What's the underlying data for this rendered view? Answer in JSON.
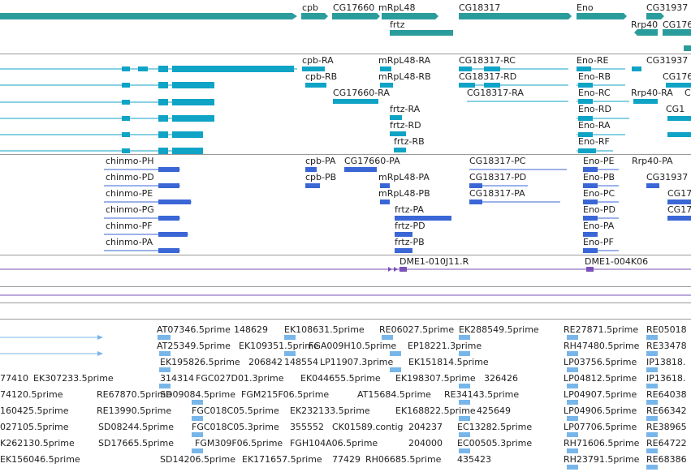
{
  "colors": {
    "gene": "#2a9c9c",
    "mrna": "#0fa3c6",
    "cds": "#3a66d6",
    "probe": "#7a52b8",
    "est": "#78b6ea",
    "divider": "#9a9a9a",
    "label": "#222222"
  },
  "tracks": {
    "genes": {
      "labels": [
        {
          "t": "cpb"
        },
        {
          "t": "CG17660"
        },
        {
          "t": "mRpL48"
        },
        {
          "t": "CG18317"
        },
        {
          "t": "Eno"
        },
        {
          "t": "CG31937"
        },
        {
          "t": "frtz"
        },
        {
          "t": "Rrp40"
        },
        {
          "t": "CG176"
        }
      ]
    },
    "transcripts": {
      "labels": [
        {
          "t": "cpb-RA"
        },
        {
          "t": "mRpL48-RA"
        },
        {
          "t": "CG18317-RC"
        },
        {
          "t": "Eno-RE"
        },
        {
          "t": "CG31937"
        },
        {
          "t": "cpb-RB"
        },
        {
          "t": "mRpL48-RB"
        },
        {
          "t": "CG18317-RD"
        },
        {
          "t": "Eno-RB"
        },
        {
          "t": "CG176"
        },
        {
          "t": "CG17660-RA"
        },
        {
          "t": "CG18317-RA"
        },
        {
          "t": "Eno-RC"
        },
        {
          "t": "Rrp40-RA"
        },
        {
          "t": "C"
        },
        {
          "t": "frtz-RA"
        },
        {
          "t": "Eno-RD"
        },
        {
          "t": "CG1"
        },
        {
          "t": "frtz-RD"
        },
        {
          "t": "Eno-RA"
        },
        {
          "t": "frtz-RB"
        },
        {
          "t": "Eno-RF"
        }
      ]
    },
    "proteins": {
      "labels": [
        {
          "t": "chinmo-PH"
        },
        {
          "t": "cpb-PA"
        },
        {
          "t": "CG17660-PA"
        },
        {
          "t": "CG18317-PC"
        },
        {
          "t": "Eno-PE"
        },
        {
          "t": "Rrp40-PA"
        },
        {
          "t": "chinmo-PD"
        },
        {
          "t": "cpb-PB"
        },
        {
          "t": "mRpL48-PA"
        },
        {
          "t": "CG18317-PD"
        },
        {
          "t": "Eno-PB"
        },
        {
          "t": "CG31937"
        },
        {
          "t": "chinmo-PE"
        },
        {
          "t": "mRpL48-PB"
        },
        {
          "t": "CG18317-PA"
        },
        {
          "t": "Eno-PC"
        },
        {
          "t": "CG17"
        },
        {
          "t": "chinmo-PG"
        },
        {
          "t": "frtz-PA"
        },
        {
          "t": "Eno-PD"
        },
        {
          "t": "CG17"
        },
        {
          "t": "chinmo-PF"
        },
        {
          "t": "frtz-PD"
        },
        {
          "t": "Eno-PA"
        },
        {
          "t": "chinmo-PA"
        },
        {
          "t": "frtz-PB"
        },
        {
          "t": "Eno-PF"
        }
      ]
    },
    "probes": {
      "labels": [
        {
          "t": "DME1-010J11.R"
        },
        {
          "t": "DME1-004K06"
        }
      ]
    },
    "ests": {
      "labels": [
        {
          "t": "AT07346.5prime"
        },
        {
          "t": "148629"
        },
        {
          "t": "EK108631.5prime"
        },
        {
          "t": "RE06027.5prime"
        },
        {
          "t": "EK288549.5prime"
        },
        {
          "t": "RE27871.5prime"
        },
        {
          "t": "RE05018"
        },
        {
          "t": "AT25349.5prime"
        },
        {
          "t": "EK109351.5prime"
        },
        {
          "t": "FGA009H10.5prime"
        },
        {
          "t": "EP18221.3prime"
        },
        {
          "t": "RH47480.5prime"
        },
        {
          "t": "RE33478"
        },
        {
          "t": "EK195826.5prime"
        },
        {
          "t": "206842"
        },
        {
          "t": "148554"
        },
        {
          "t": "LP11907.3prime"
        },
        {
          "t": "EK151814.5prime"
        },
        {
          "t": "LP03756.5prime"
        },
        {
          "t": "IP13818."
        },
        {
          "t": "77410"
        },
        {
          "t": "EK307233.5prime"
        },
        {
          "t": "314314"
        },
        {
          "t": "FGC027D01.3prime"
        },
        {
          "t": "EK044655.5prime"
        },
        {
          "t": "EK198307.5prime"
        },
        {
          "t": "326426"
        },
        {
          "t": "LP04812.5prime"
        },
        {
          "t": "IP13618."
        },
        {
          "t": "74120.5prime"
        },
        {
          "t": "RE67870.5prime"
        },
        {
          "t": "SD09084.5prime"
        },
        {
          "t": "FGM215F06.5prime"
        },
        {
          "t": "AT15684.5prime"
        },
        {
          "t": "RE34143.5prime"
        },
        {
          "t": "LP04907.5prime"
        },
        {
          "t": "RE64038"
        },
        {
          "t": "160425.5prime"
        },
        {
          "t": "RE13990.5prime"
        },
        {
          "t": "FGC018C05.5prime"
        },
        {
          "t": "EK232133.5prime"
        },
        {
          "t": "EK168822.5prime"
        },
        {
          "t": "425649"
        },
        {
          "t": "LP04906.5prime"
        },
        {
          "t": "RE66342"
        },
        {
          "t": "027105.5prime"
        },
        {
          "t": "SD08244.5prime"
        },
        {
          "t": "FGC018C05.3prime"
        },
        {
          "t": "355552"
        },
        {
          "t": "CK01589.contig"
        },
        {
          "t": "204237"
        },
        {
          "t": "EC13282.5prime"
        },
        {
          "t": "LP07706.5prime"
        },
        {
          "t": "RE38965"
        },
        {
          "t": "K262130.5prime"
        },
        {
          "t": "SD17665.5prime"
        },
        {
          "t": "FGM309F06.5prime"
        },
        {
          "t": "FGH104A06.5prime"
        },
        {
          "t": "204000"
        },
        {
          "t": "EC00505.3prime"
        },
        {
          "t": "RH71606.5prime"
        },
        {
          "t": "RE64722"
        },
        {
          "t": "EK156046.5prime"
        },
        {
          "t": "SD14206.5prime"
        },
        {
          "t": "EK171657.5prime"
        },
        {
          "t": "77429"
        },
        {
          "t": "RH06685.5prime"
        },
        {
          "t": "435423"
        },
        {
          "t": "RH23791.5prime"
        },
        {
          "t": "RE68386"
        }
      ]
    }
  }
}
